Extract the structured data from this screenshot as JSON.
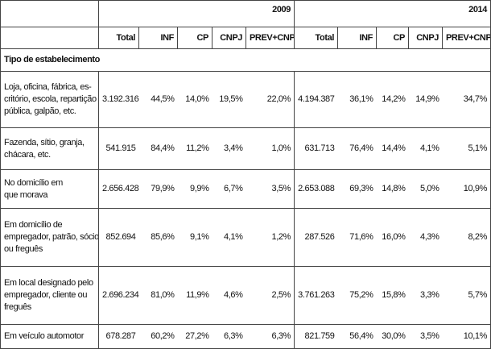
{
  "table": {
    "years": [
      "2009",
      "2014"
    ],
    "columns": [
      "Total",
      "INF",
      "CP",
      "CNPJ",
      "PREV+CNPJ",
      "Total",
      "INF",
      "CP",
      "CNPJ",
      "PREV+CNPJ"
    ],
    "section": "Tipo de estabelecimento",
    "rows": [
      {
        "label": [
          "Loja, oficina, fábrica, es-",
          "critório, escola, repartição",
          "pública, galpão, etc."
        ],
        "cells": [
          "3.192.316",
          "44,5%",
          "14,0%",
          "19,5%",
          "22,0%",
          "4.194.387",
          "36,1%",
          "14,2%",
          "14,9%",
          "34,7%"
        ]
      },
      {
        "label": [
          "Fazenda, sítio, granja,",
          "chácara, etc."
        ],
        "cells": [
          "541.915",
          "84,4%",
          "11,2%",
          "3,4%",
          "1,0%",
          "631.713",
          "76,4%",
          "14,4%",
          "4,1%",
          "5,1%"
        ]
      },
      {
        "label": [
          "No domicílio em",
          "que morava"
        ],
        "cells": [
          "2.656.428",
          "79,9%",
          "9,9%",
          "6,7%",
          "3,5%",
          "2.653.088",
          "69,3%",
          "14,8%",
          "5,0%",
          "10,9%"
        ]
      },
      {
        "label": [
          "Em domicílio de",
          "empregador, patrão, sócio",
          "ou freguês"
        ],
        "cells": [
          "852.694",
          "85,6%",
          "9,1%",
          "4,1%",
          "1,2%",
          "287.526",
          "71,6%",
          "16,0%",
          "4,3%",
          "8,2%"
        ]
      },
      {
        "label": [
          "Em local designado pelo",
          "empregador, cliente ou",
          "freguês"
        ],
        "cells": [
          "2.696.234",
          "81,0%",
          "11,9%",
          "4,6%",
          "2,5%",
          "3.761.263",
          "75,2%",
          "15,8%",
          "3,3%",
          "5,7%"
        ]
      },
      {
        "label": [
          "Em veículo automotor"
        ],
        "cells": [
          "678.287",
          "60,2%",
          "27,2%",
          "6,3%",
          "6,3%",
          "821.759",
          "56,4%",
          "30,0%",
          "3,5%",
          "10,1%"
        ]
      }
    ]
  }
}
